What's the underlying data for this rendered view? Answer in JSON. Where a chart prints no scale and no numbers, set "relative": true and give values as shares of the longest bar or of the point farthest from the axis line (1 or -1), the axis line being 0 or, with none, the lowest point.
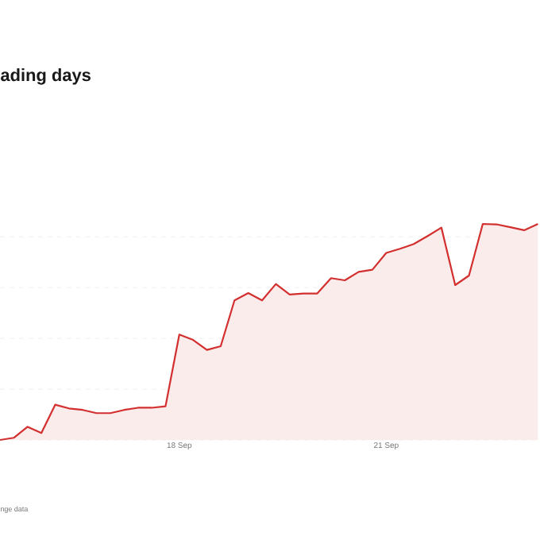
{
  "chart_data": {
    "type": "area",
    "title": "ading days",
    "relative": true,
    "grid": "y",
    "color": "#d32f2f",
    "categories": [
      null,
      null,
      null,
      null,
      null,
      null,
      null,
      null,
      null,
      null,
      null,
      null,
      null,
      "18 Sep",
      null,
      null,
      null,
      null,
      null,
      null,
      null,
      null,
      null,
      null,
      null,
      null,
      null,
      null,
      "21 Sep",
      null,
      null,
      null,
      null,
      null,
      null,
      null,
      null,
      null,
      null,
      null
    ],
    "values": [
      0,
      0.01,
      0.061,
      0.032,
      0.163,
      0.146,
      0.139,
      0.124,
      0.124,
      0.139,
      0.149,
      0.149,
      0.156,
      0.488,
      0.463,
      0.417,
      0.434,
      0.646,
      0.68,
      0.646,
      0.722,
      0.673,
      0.678,
      0.678,
      0.749,
      0.739,
      0.778,
      0.788,
      0.866,
      0.885,
      0.907,
      0.944,
      0.983,
      0.717,
      0.761,
      1,
      0.998,
      0.985,
      0.971,
      1
    ],
    "annotations": [
      "nge data"
    ]
  }
}
